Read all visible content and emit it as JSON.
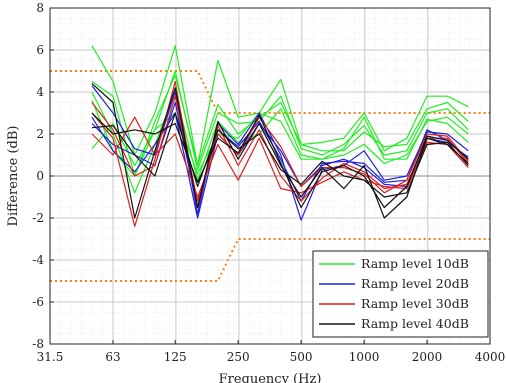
{
  "chart_data": {
    "type": "line",
    "xlabel": "Frequency (Hz)",
    "ylabel": "Difference (dB)",
    "x_scale": "log2",
    "xlim": [
      31.5,
      4000
    ],
    "ylim": [
      -8,
      8
    ],
    "grid": true,
    "minor_grid": true,
    "legend_position": "bottom-right",
    "x_ticks": [
      31.5,
      63,
      125,
      250,
      500,
      1000,
      2000,
      4000
    ],
    "x_tick_labels": [
      "31.5",
      "63",
      "125",
      "250",
      "500",
      "1000",
      "2000",
      "4000"
    ],
    "y_ticks": [
      -8,
      -6,
      -4,
      -2,
      0,
      2,
      4,
      6,
      8
    ],
    "x": [
      50,
      63,
      80,
      100,
      125,
      160,
      200,
      250,
      315,
      400,
      500,
      630,
      800,
      1000,
      1250,
      1600,
      2000,
      2500,
      3150
    ],
    "limit_lines": [
      {
        "color": "#ff7f0e",
        "style": "dotted",
        "x": [
          31.5,
          160,
          200,
          4000
        ],
        "y": [
          5,
          5,
          3,
          3
        ]
      },
      {
        "color": "#ff7f0e",
        "style": "dotted",
        "x": [
          31.5,
          200,
          250,
          4000
        ],
        "y": [
          -5,
          -5,
          -3,
          -3
        ]
      }
    ],
    "series": [
      {
        "name": "Ramp level 10dB",
        "color": "#22ee22",
        "values": [
          6.2,
          4.5,
          1.0,
          3.0,
          6.2,
          0.5,
          5.5,
          2.8,
          3.0,
          4.6,
          1.5,
          1.6,
          1.8,
          3.0,
          1.2,
          1.8,
          3.8,
          3.8,
          3.3
        ]
      },
      {
        "name": "",
        "color": "#22ee22",
        "values": [
          4.5,
          3.8,
          0.0,
          2.2,
          5.0,
          0.3,
          3.0,
          2.5,
          2.6,
          3.8,
          1.3,
          1.0,
          1.5,
          2.4,
          1.0,
          1.2,
          3.0,
          3.2,
          2.2
        ]
      },
      {
        "name": "",
        "color": "#22ee22",
        "values": [
          4.0,
          2.0,
          -0.8,
          1.5,
          4.0,
          -0.2,
          2.6,
          1.6,
          2.0,
          3.2,
          1.0,
          0.8,
          1.0,
          1.5,
          0.6,
          1.0,
          2.6,
          2.8,
          2.0
        ]
      },
      {
        "name": "",
        "color": "#22ee22",
        "values": [
          1.3,
          2.5,
          0.5,
          2.2,
          3.0,
          0.1,
          2.0,
          1.8,
          3.0,
          2.6,
          0.8,
          0.8,
          1.3,
          2.8,
          0.8,
          0.8,
          2.7,
          2.5,
          1.6
        ]
      },
      {
        "name": "",
        "color": "#22ee22",
        "values": [
          3.6,
          1.2,
          0.0,
          2.6,
          4.8,
          0.5,
          3.4,
          2.0,
          2.8,
          3.5,
          1.5,
          1.2,
          1.2,
          2.1,
          1.4,
          1.5,
          3.2,
          3.5,
          2.6
        ]
      },
      {
        "name": "Ramp level 20dB",
        "color": "#1f1fdd",
        "values": [
          4.3,
          3.0,
          1.3,
          1.0,
          4.0,
          -1.8,
          2.5,
          1.5,
          3.0,
          1.0,
          -2.1,
          0.3,
          0.5,
          1.2,
          -0.2,
          0.0,
          2.1,
          2.0,
          1.2
        ]
      },
      {
        "name": "",
        "color": "#1f1fdd",
        "values": [
          2.5,
          1.5,
          1.0,
          0.5,
          3.5,
          -1.5,
          2.2,
          1.4,
          2.6,
          0.8,
          -1.2,
          0.6,
          0.7,
          0.6,
          -0.3,
          -0.2,
          2.2,
          1.7,
          0.8
        ]
      },
      {
        "name": "",
        "color": "#1f1fdd",
        "values": [
          2.8,
          1.2,
          0.2,
          1.5,
          3.0,
          -2.0,
          2.0,
          1.0,
          2.5,
          1.2,
          -0.5,
          0.5,
          0.8,
          0.4,
          -0.4,
          -0.5,
          1.8,
          1.6,
          0.9
        ]
      },
      {
        "name": "Ramp level 30dB",
        "color": "#dd1f1f",
        "values": [
          3.0,
          1.8,
          -2.4,
          0.8,
          4.5,
          -1.5,
          2.4,
          0.5,
          2.2,
          0.0,
          -1.2,
          -0.1,
          0.6,
          0.2,
          -0.6,
          -0.4,
          1.8,
          1.8,
          0.6
        ]
      },
      {
        "name": "",
        "color": "#dd1f1f",
        "values": [
          2.0,
          1.0,
          2.8,
          1.0,
          2.0,
          -1.0,
          1.5,
          -0.2,
          1.8,
          -0.6,
          -0.8,
          -0.3,
          0.2,
          -0.2,
          -0.5,
          -0.6,
          1.6,
          1.5,
          0.4
        ]
      },
      {
        "name": "",
        "color": "#dd1f1f",
        "values": [
          3.5,
          2.2,
          0.0,
          0.5,
          3.8,
          -1.2,
          2.0,
          1.0,
          2.8,
          1.4,
          -0.5,
          0.4,
          0.4,
          0.1,
          -0.8,
          -0.2,
          2.0,
          1.9,
          0.7
        ]
      },
      {
        "name": "Ramp level 40dB",
        "color": "#111111",
        "values": [
          4.4,
          3.5,
          -2.0,
          1.2,
          4.2,
          -1.5,
          2.6,
          0.8,
          2.5,
          0.5,
          -1.0,
          0.4,
          -0.6,
          0.5,
          -2.0,
          -1.0,
          1.8,
          1.5,
          0.6
        ]
      },
      {
        "name": "",
        "color": "#111111",
        "values": [
          2.3,
          2.4,
          1.0,
          0.0,
          3.0,
          -0.5,
          2.2,
          1.3,
          2.0,
          0.3,
          -0.4,
          0.7,
          0.0,
          -0.2,
          -1.0,
          -0.8,
          1.5,
          1.6,
          0.5
        ]
      },
      {
        "name": "",
        "color": "#111111",
        "values": [
          3.0,
          2.0,
          2.2,
          2.0,
          2.5,
          -0.3,
          1.8,
          1.1,
          2.9,
          0.6,
          -1.5,
          0.2,
          0.5,
          0.0,
          -1.5,
          -0.5,
          1.9,
          1.7,
          0.8
        ]
      }
    ]
  }
}
